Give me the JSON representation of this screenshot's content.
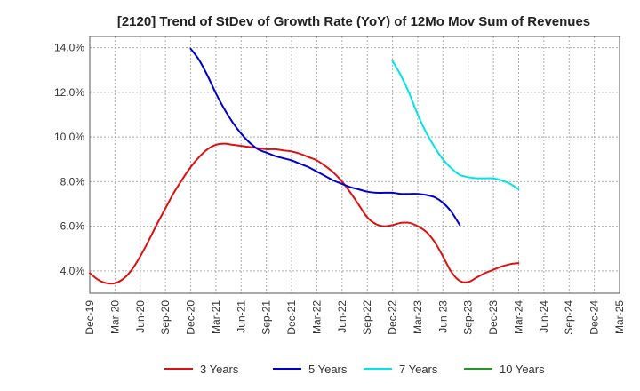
{
  "chart_data": {
    "type": "line",
    "title": "[2120]  Trend of StDev of Growth Rate (YoY) of 12Mo Mov Sum of Revenues",
    "xlabel": "",
    "ylabel": "",
    "ylim": [
      3.0,
      14.5
    ],
    "yticks": [
      4.0,
      6.0,
      8.0,
      10.0,
      12.0,
      14.0
    ],
    "ytick_labels": [
      "4.0%",
      "6.0%",
      "8.0%",
      "10.0%",
      "12.0%",
      "14.0%"
    ],
    "xtick_labels": [
      "Dec-19",
      "Mar-20",
      "Jun-20",
      "Sep-20",
      "Dec-20",
      "Mar-21",
      "Jun-21",
      "Sep-21",
      "Dec-21",
      "Mar-22",
      "Jun-22",
      "Sep-22",
      "Dec-22",
      "Mar-23",
      "Jun-23",
      "Sep-23",
      "Dec-23",
      "Mar-24",
      "Jun-24",
      "Sep-24",
      "Dec-24",
      "Mar-25"
    ],
    "grid": true,
    "legend_position": "bottom",
    "series": [
      {
        "name": "3 Years",
        "color": "#dd1111",
        "start_index": 0,
        "values": [
          3.9,
          3.6,
          3.45,
          3.45,
          3.65,
          4.05,
          4.65,
          5.35,
          6.1,
          6.8,
          7.5,
          8.1,
          8.65,
          9.1,
          9.45,
          9.65,
          9.7,
          9.65,
          9.6,
          9.55,
          9.5,
          9.45,
          9.45,
          9.4,
          9.35,
          9.25,
          9.1,
          8.95,
          8.7,
          8.4,
          8.0,
          7.5,
          6.95,
          6.4,
          6.1,
          6.0,
          6.05,
          6.15,
          6.15,
          6.0,
          5.75,
          5.3,
          4.65,
          3.95,
          3.55,
          3.5,
          3.7,
          3.9,
          4.05,
          4.2,
          4.3,
          4.35
        ]
      },
      {
        "name": "5 Years",
        "color": "#0000cc",
        "start_index": 12,
        "values": [
          13.95,
          13.45,
          12.75,
          11.95,
          11.25,
          10.65,
          10.15,
          9.75,
          9.45,
          9.3,
          9.15,
          9.05,
          8.95,
          8.8,
          8.65,
          8.45,
          8.25,
          8.05,
          7.9,
          7.75,
          7.65,
          7.55,
          7.5,
          7.5,
          7.5,
          7.45,
          7.45,
          7.45,
          7.4,
          7.3,
          7.05,
          6.65,
          6.05
        ]
      },
      {
        "name": "7 Years",
        "color": "#00e5e5",
        "start_index": 36,
        "values": [
          13.4,
          12.75,
          11.95,
          11.0,
          10.2,
          9.55,
          9.0,
          8.6,
          8.3,
          8.2,
          8.15,
          8.15,
          8.15,
          8.05,
          7.9,
          7.65
        ]
      },
      {
        "name": "10 Years",
        "color": "#229922",
        "start_index": 0,
        "values": []
      }
    ]
  }
}
